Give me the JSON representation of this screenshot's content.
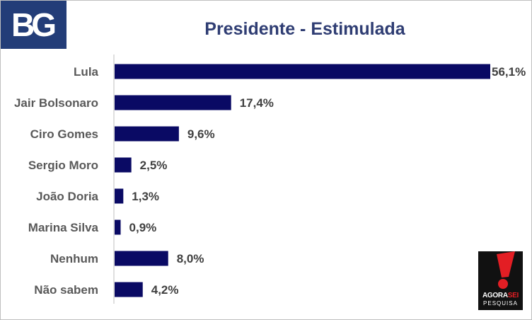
{
  "logo": {
    "text": "BG",
    "color": "#233d78"
  },
  "chart_data": {
    "type": "bar",
    "orientation": "horizontal",
    "title": "Presidente - Estimulada",
    "categories": [
      "Lula",
      "Jair Bolsonaro",
      "Ciro Gomes",
      "Sergio Moro",
      "João Doria",
      "Marina Silva",
      "Nenhum",
      "Não sabem"
    ],
    "values": [
      56.1,
      17.4,
      9.6,
      2.5,
      1.3,
      0.9,
      8.0,
      4.2
    ],
    "value_labels": [
      "56,1%",
      "17,4%",
      "9,6%",
      "2,5%",
      "1,3%",
      "0,9%",
      "8,0%",
      "4,2%"
    ],
    "xlim": [
      0,
      56.1
    ],
    "bar_color": "#0a0a64",
    "grid": false,
    "legend": "none"
  },
  "source_logo": {
    "name": "AGORASEI",
    "word_a": "AGORA",
    "word_b": "SEI",
    "subtitle": "PESQUISA",
    "icon": "exclamation-icon",
    "accent": "#e31e24"
  }
}
